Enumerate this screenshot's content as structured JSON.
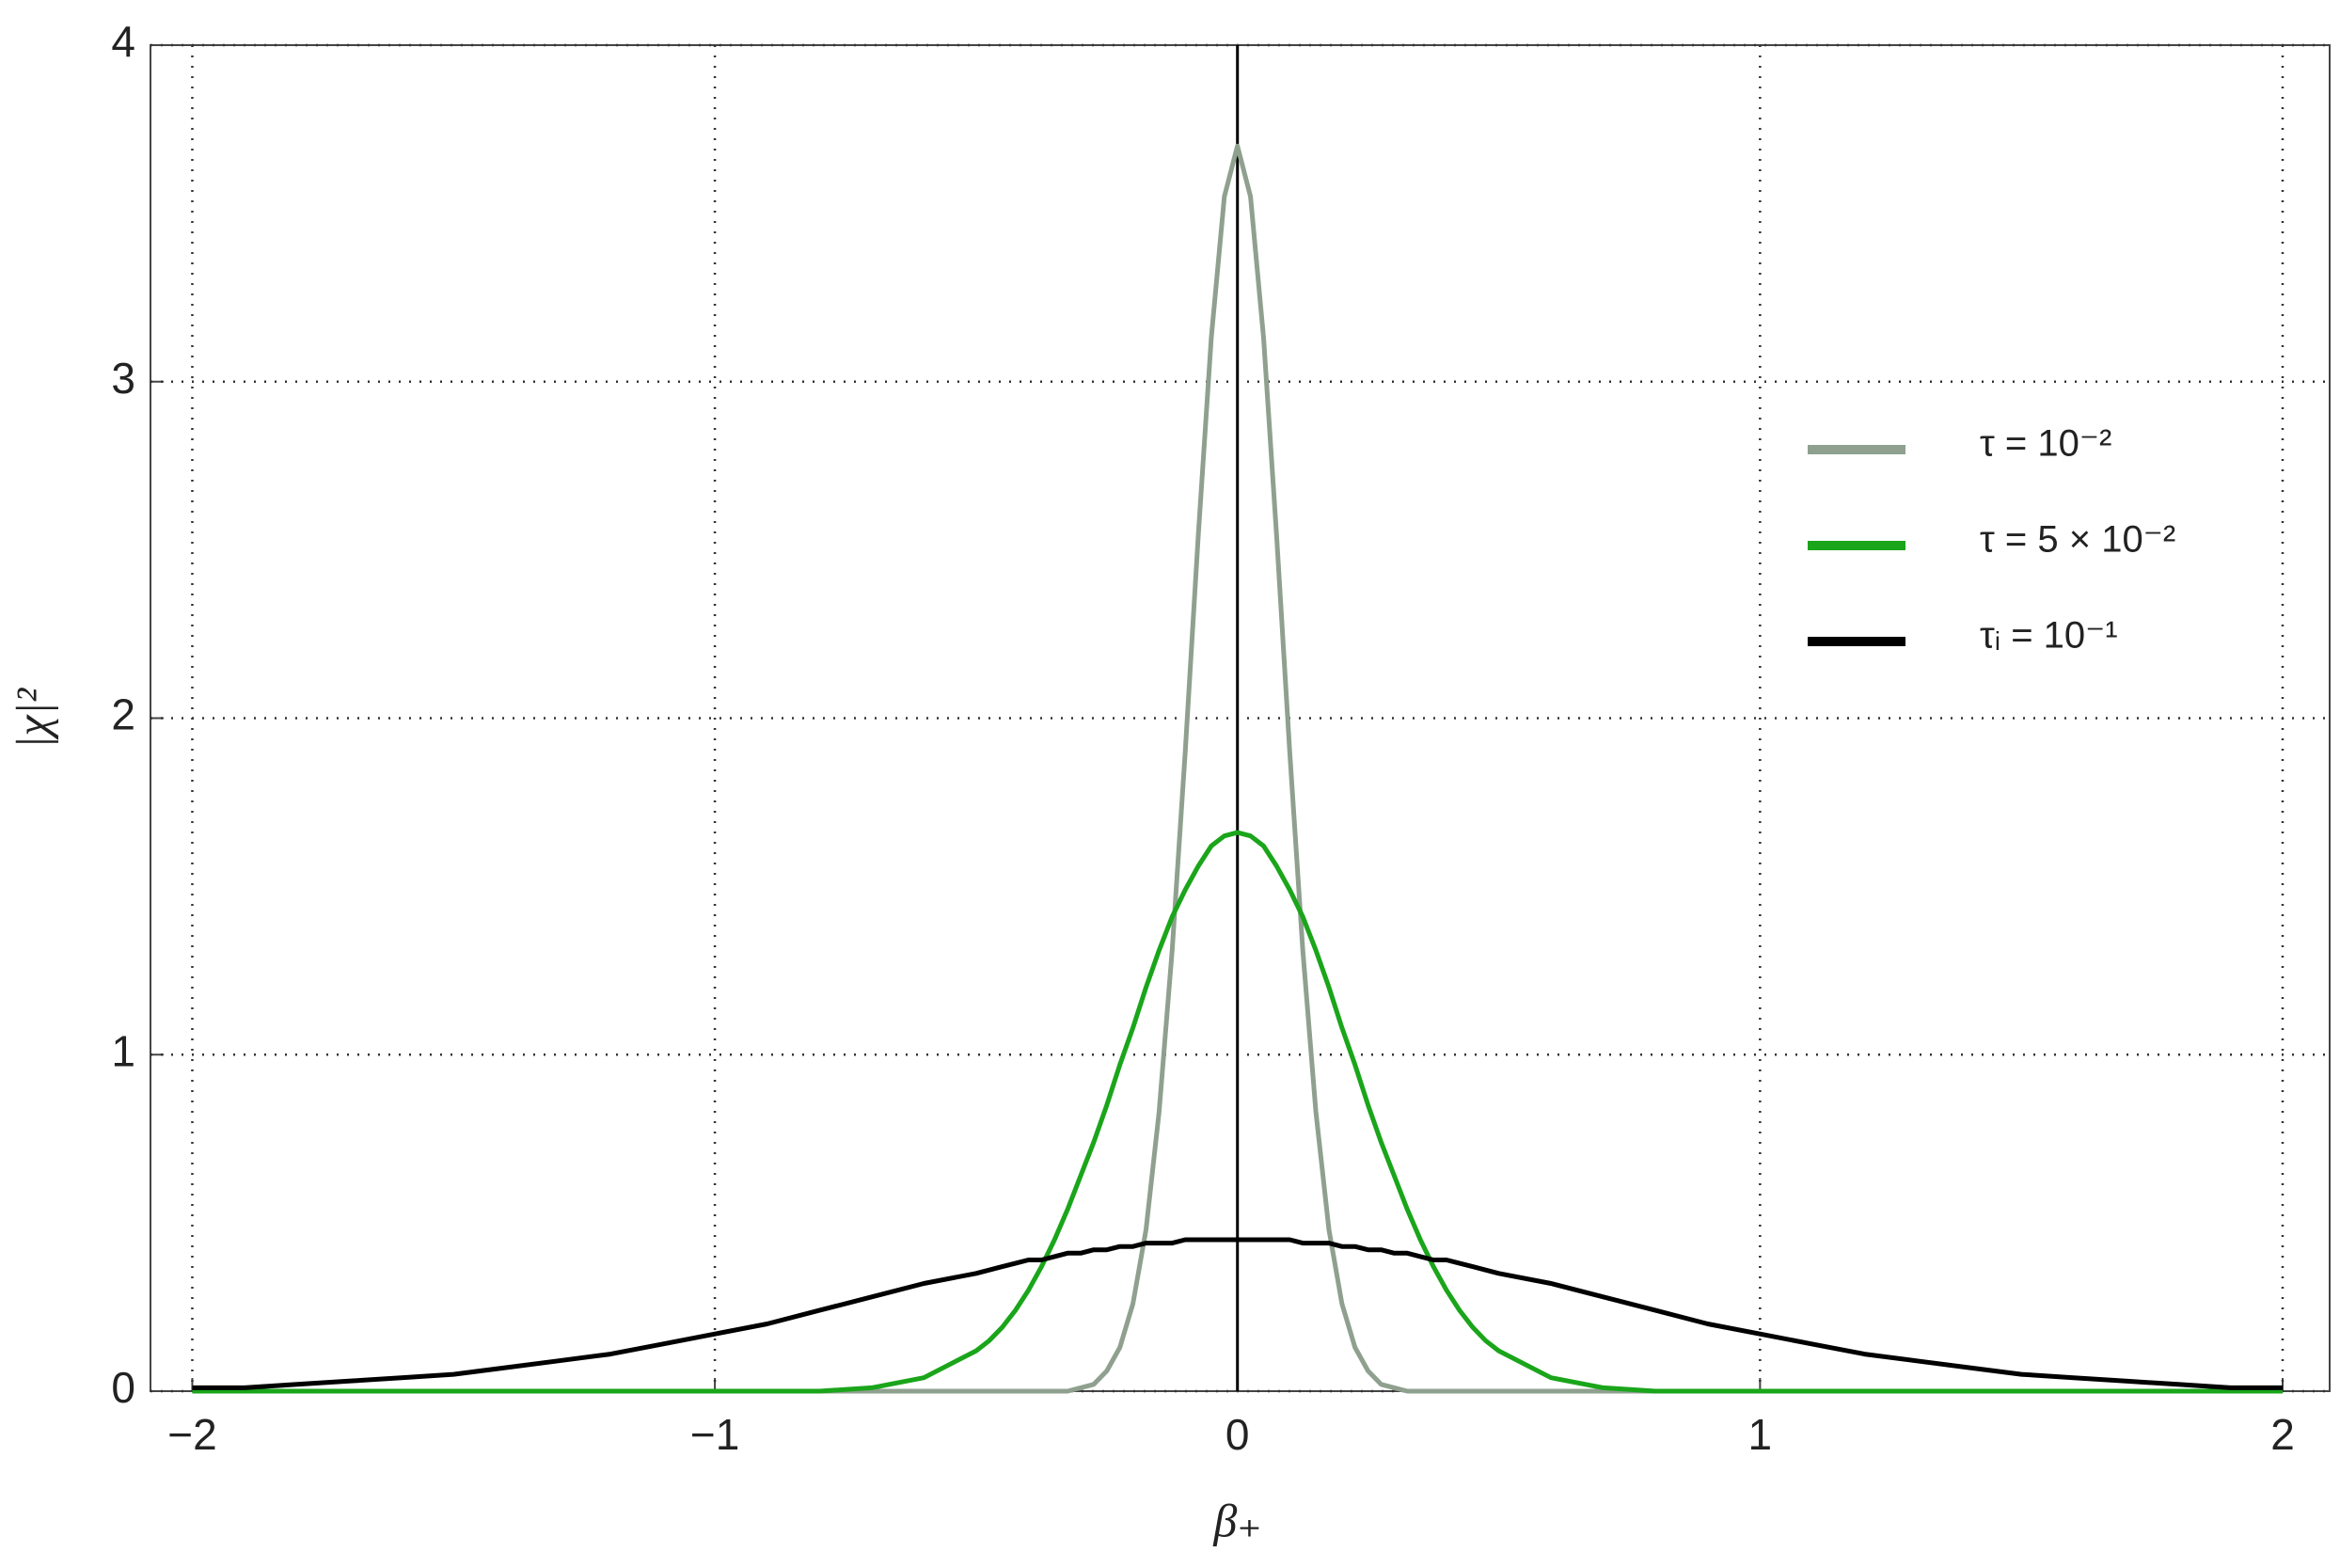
{
  "chart_data": {
    "type": "line",
    "x_label": "β₊",
    "y_label": "|χ|²",
    "x": [
      -2,
      -1.9,
      -1.8,
      -1.7,
      -1.6,
      -1.5,
      -1.4,
      -1.3,
      -1.2,
      -1.1,
      -1,
      -0.9,
      -0.8,
      -0.7,
      -0.6,
      -0.5,
      -0.475,
      -0.45,
      -0.425,
      -0.4,
      -0.375,
      -0.35,
      -0.325,
      -0.3,
      -0.275,
      -0.25,
      -0.225,
      -0.2,
      -0.175,
      -0.15,
      -0.125,
      -0.1,
      -0.075,
      -0.05,
      -0.025,
      0,
      0.025,
      0.05,
      0.075,
      0.1,
      0.125,
      0.15,
      0.175,
      0.2,
      0.225,
      0.25,
      0.275,
      0.3,
      0.325,
      0.35,
      0.375,
      0.4,
      0.425,
      0.45,
      0.475,
      0.5,
      0.6,
      0.7,
      0.8,
      0.9,
      1,
      1.1,
      1.2,
      1.3,
      1.4,
      1.5,
      1.6,
      1.7,
      1.8,
      1.9,
      2
    ],
    "series": [
      {
        "name": "τ = 10⁻²",
        "color": "#8fa08f",
        "values": [
          0,
          0,
          0,
          0,
          0,
          0,
          0,
          0,
          0,
          0,
          0,
          0,
          0,
          0,
          0,
          0,
          0,
          0,
          0,
          0,
          0,
          0,
          0,
          0.01,
          0.02,
          0.06,
          0.13,
          0.26,
          0.48,
          0.83,
          1.31,
          1.9,
          2.54,
          3.13,
          3.55,
          3.7,
          3.55,
          3.13,
          2.54,
          1.9,
          1.31,
          0.83,
          0.48,
          0.26,
          0.13,
          0.06,
          0.02,
          0.01,
          0,
          0,
          0,
          0,
          0,
          0,
          0,
          0,
          0,
          0,
          0,
          0,
          0,
          0,
          0,
          0,
          0,
          0,
          0,
          0,
          0,
          0,
          0
        ]
      },
      {
        "name": "τ = 5 × 10⁻²",
        "color": "#1aa51a",
        "values": [
          0,
          0,
          0,
          0,
          0,
          0,
          0,
          0,
          0,
          0,
          0,
          0,
          0,
          0.01,
          0.04,
          0.12,
          0.15,
          0.19,
          0.24,
          0.3,
          0.37,
          0.45,
          0.54,
          0.64,
          0.74,
          0.85,
          0.97,
          1.08,
          1.2,
          1.31,
          1.41,
          1.49,
          1.56,
          1.62,
          1.65,
          1.66,
          1.65,
          1.62,
          1.56,
          1.49,
          1.41,
          1.31,
          1.2,
          1.08,
          0.97,
          0.85,
          0.74,
          0.64,
          0.54,
          0.45,
          0.37,
          0.3,
          0.24,
          0.19,
          0.15,
          0.12,
          0.04,
          0.01,
          0,
          0,
          0,
          0,
          0,
          0,
          0,
          0,
          0,
          0,
          0,
          0,
          0
        ]
      },
      {
        "name": "τᵢ = 10⁻¹",
        "color": "#000000",
        "values": [
          0.01,
          0.01,
          0.02,
          0.03,
          0.04,
          0.05,
          0.07,
          0.09,
          0.11,
          0.14,
          0.17,
          0.2,
          0.24,
          0.28,
          0.32,
          0.35,
          0.36,
          0.37,
          0.38,
          0.39,
          0.39,
          0.4,
          0.41,
          0.41,
          0.42,
          0.42,
          0.43,
          0.43,
          0.44,
          0.44,
          0.44,
          0.45,
          0.45,
          0.45,
          0.45,
          0.45,
          0.45,
          0.45,
          0.45,
          0.45,
          0.44,
          0.44,
          0.44,
          0.43,
          0.43,
          0.42,
          0.42,
          0.41,
          0.41,
          0.4,
          0.39,
          0.39,
          0.38,
          0.37,
          0.36,
          0.35,
          0.32,
          0.28,
          0.24,
          0.2,
          0.17,
          0.14,
          0.11,
          0.09,
          0.07,
          0.05,
          0.04,
          0.03,
          0.02,
          0.01,
          0.01
        ]
      }
    ],
    "xlim": [
      -2.08,
      2.09
    ],
    "ylim": [
      0,
      4
    ],
    "xticks": [
      {
        "value": -2,
        "label": "−2"
      },
      {
        "value": -1,
        "label": "−1"
      },
      0,
      1,
      2
    ],
    "yticks": [
      0,
      1,
      2,
      3,
      4
    ],
    "grid": true,
    "legend": "right"
  }
}
